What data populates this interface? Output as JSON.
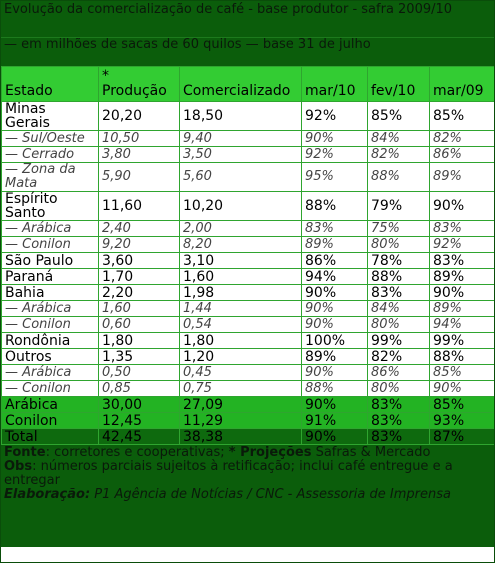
{
  "header": {
    "title": "Evolução da comercialização de café - base produtor - safra 2009/10",
    "subtitle": "— em milhões de sacas de 60 quilos — base 31 de julho"
  },
  "table": {
    "columns": [
      "Estado",
      "* Produção",
      "Comercializado",
      "mar/10",
      "fev/10",
      "mar/09"
    ],
    "rows": [
      [
        "Minas Gerais",
        "20,20",
        "18,50",
        "92%",
        "85%",
        "85%"
      ],
      [
        "— Sul/Oeste",
        "10,50",
        "9,40",
        "90%",
        "84%",
        "82%"
      ],
      [
        "— Cerrado",
        "3,80",
        "3,50",
        "92%",
        "82%",
        "86%"
      ],
      [
        "— Zona da Mata",
        "5,90",
        "5,60",
        "95%",
        "88%",
        "89%"
      ],
      [
        "Espírito Santo",
        "11,60",
        "10,20",
        "88%",
        "79%",
        "90%"
      ],
      [
        "— Arábica",
        "2,40",
        "2,00",
        "83%",
        "75%",
        "83%"
      ],
      [
        "— Conilon",
        "9,20",
        "8,20",
        "89%",
        "80%",
        "92%"
      ],
      [
        "São Paulo",
        "3,60",
        "3,10",
        "86%",
        "78%",
        "83%"
      ],
      [
        "Paraná",
        "1,70",
        "1,60",
        "94%",
        "88%",
        "89%"
      ],
      [
        "Bahia",
        "2,20",
        "1,98",
        "90%",
        "83%",
        "90%"
      ],
      [
        "— Arábica",
        "1,60",
        "1,44",
        "90%",
        "84%",
        "89%"
      ],
      [
        "— Conilon",
        "0,60",
        "0,54",
        "90%",
        "80%",
        "94%"
      ],
      [
        "Rondônia",
        "1,80",
        "1,80",
        "100%",
        "99%",
        "99%"
      ],
      [
        "Outros",
        "1,35",
        "1,20",
        "89%",
        "82%",
        "88%"
      ],
      [
        "— Arábica",
        "0,50",
        "0,45",
        "90%",
        "86%",
        "85%"
      ],
      [
        "— Conilon",
        "0,85",
        "0,75",
        "88%",
        "80%",
        "90%"
      ]
    ],
    "totals": [
      [
        "Arábica",
        "30,00",
        "27,09",
        "90%",
        "83%",
        "85%"
      ],
      [
        "Conilon",
        "12,45",
        "11,29",
        "91%",
        "83%",
        "93%"
      ],
      [
        "Total",
        "42,45",
        "38,38",
        "90%",
        "83%",
        "87%"
      ]
    ]
  },
  "footer": {
    "source": [
      "Fonte",
      ": corretores e cooperativas; ",
      "* Projeções",
      " Safras & Mercado"
    ],
    "obs": [
      "Obs",
      ": números parciais sujeitos à retificação; inclui café entregue e a entregar"
    ],
    "credit": [
      "Elaboração:",
      " P1 Agência de Notícias / CNC - Assessoria de Imprensa"
    ]
  }
}
